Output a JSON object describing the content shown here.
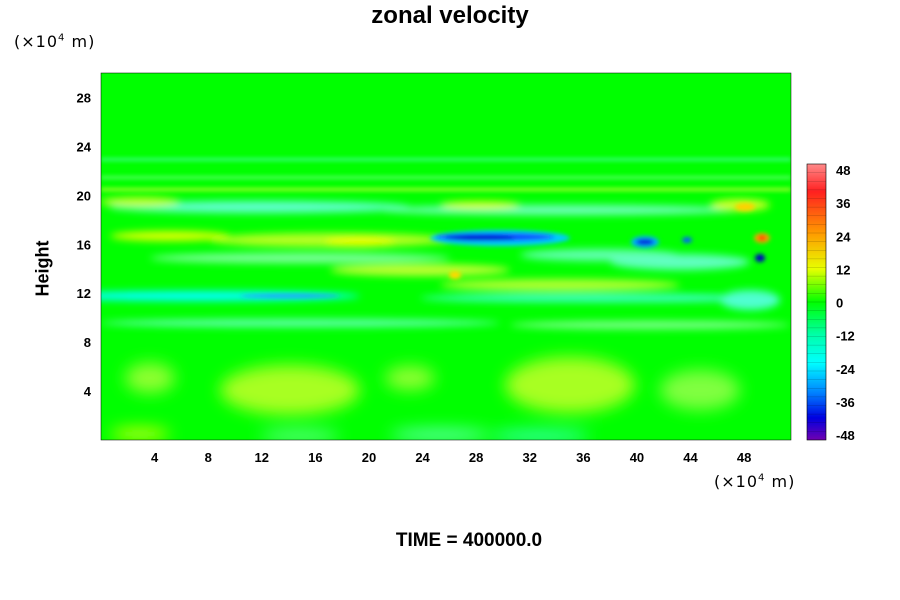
{
  "chart_data": {
    "type": "heatmap",
    "title": "zonal velocity",
    "ylabel": "Height",
    "xlabel": "",
    "x_unit": "(×10",
    "x_unit_exp": "4",
    "x_unit_suffix": " m)",
    "y_unit": "(×10",
    "y_unit_exp": "4",
    "y_unit_suffix": " m)",
    "xlim": [
      0,
      51.5
    ],
    "ylim": [
      0,
      30
    ],
    "xticks": [
      4,
      8,
      12,
      16,
      20,
      24,
      28,
      32,
      36,
      40,
      44,
      48
    ],
    "yticks": [
      4,
      8,
      12,
      16,
      20,
      24,
      28
    ],
    "colorbar": {
      "ticks": [
        48,
        36,
        24,
        12,
        0,
        -12,
        -24,
        -36,
        -48
      ],
      "range": [
        -48,
        48
      ]
    },
    "features": [
      {
        "x": 31,
        "y": 16.5,
        "value": -38
      },
      {
        "x": 40.2,
        "y": 16.2,
        "value": -34
      },
      {
        "x": 48.5,
        "y": 14.5,
        "value": -30
      },
      {
        "x": 49,
        "y": 16.3,
        "value": 26
      },
      {
        "x": 15,
        "y": 11.8,
        "value": -16
      },
      {
        "x": 34,
        "y": 4.5,
        "value": 10
      },
      {
        "x": 13,
        "y": 3.5,
        "value": 8
      }
    ],
    "annotation": "TIME = 400000.0"
  },
  "colors": {
    "background": "#00ff00",
    "low": "#6a00b8",
    "high": "#ff7070"
  }
}
